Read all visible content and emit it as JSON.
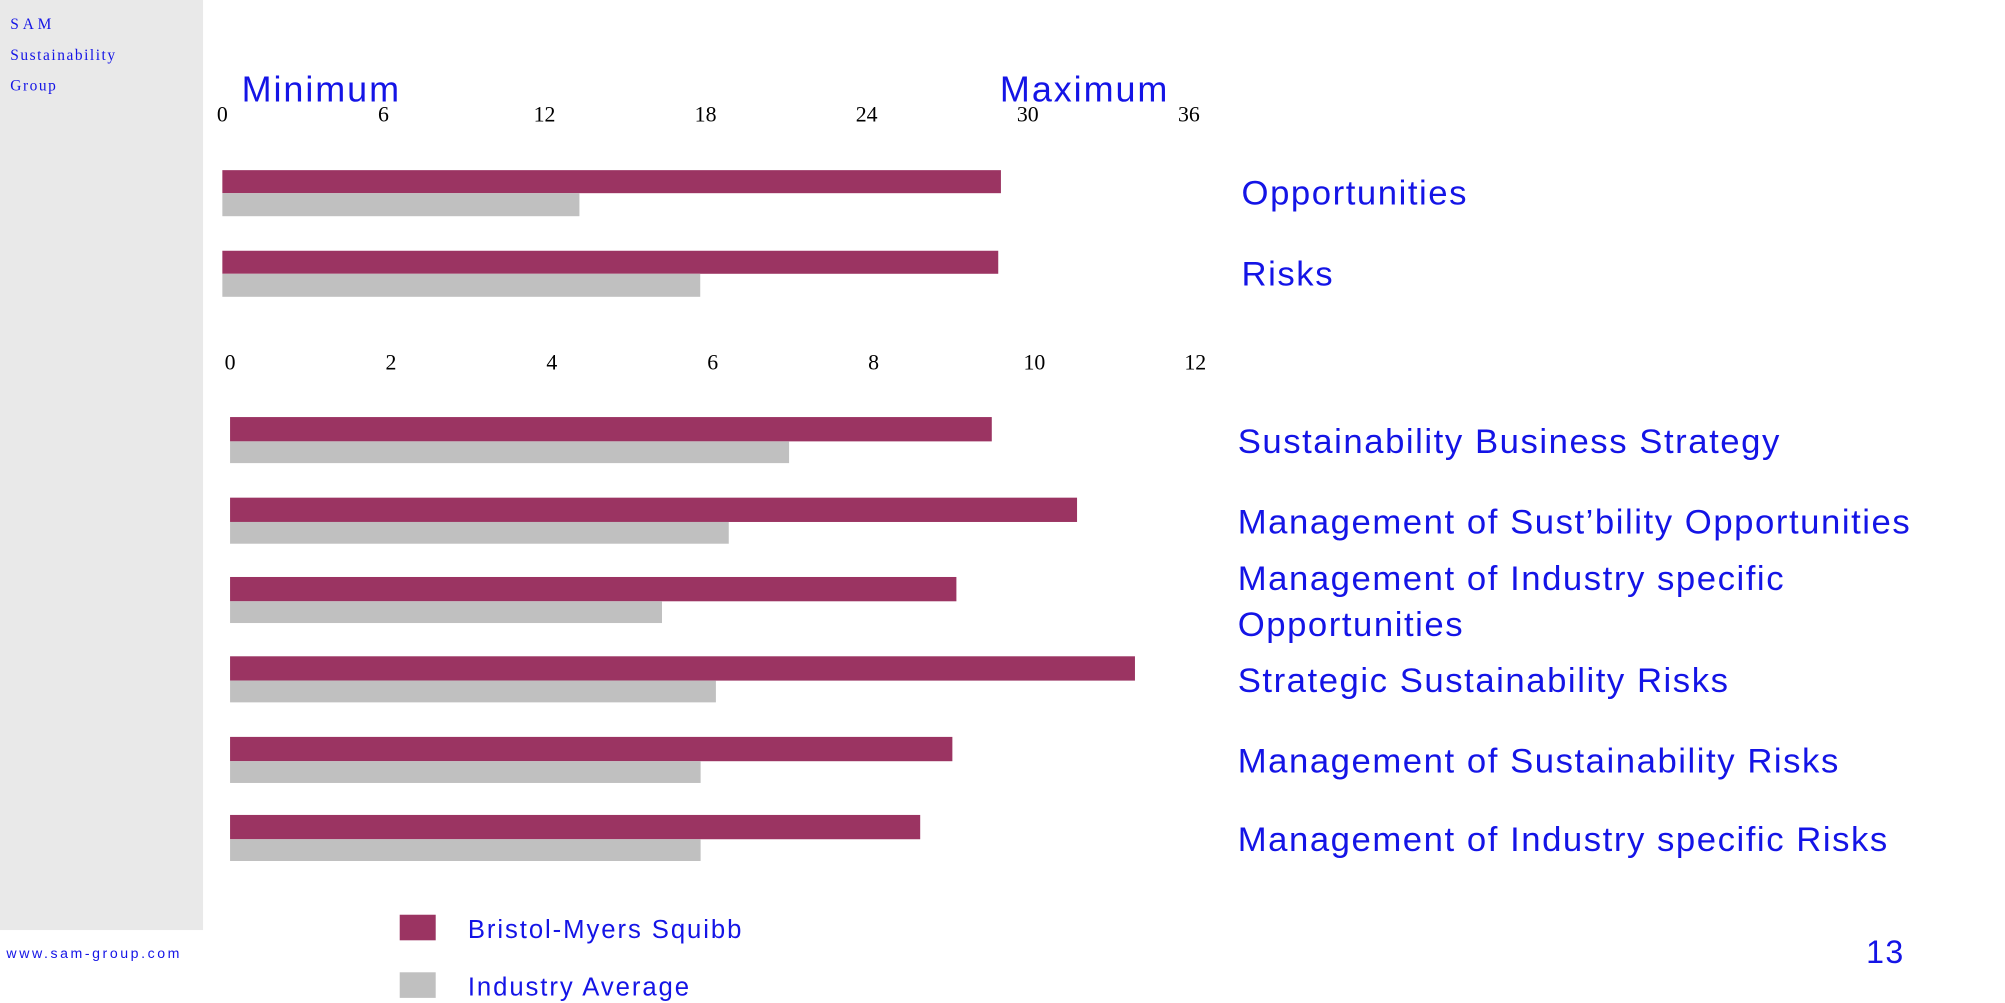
{
  "sidebar": {
    "lines": [
      "SAM",
      "Sustainability",
      "Group"
    ],
    "url": "www.sam-group.com"
  },
  "page_number": "13",
  "legend": [
    {
      "name": "Bristol-Myers Squibb",
      "color": "#9b3462"
    },
    {
      "name": "Industry Average",
      "color": "#c0c0c0"
    }
  ],
  "chart_data": [
    {
      "type": "hbar",
      "annotations": [
        "Minimum",
        "Maximum"
      ],
      "categories": [
        "Opportunities",
        "Risks"
      ],
      "series": [
        {
          "color": "#9b3462",
          "values": [
            29,
            28.9
          ]
        },
        {
          "color": "#c0c0c0",
          "values": [
            13.3,
            17.8
          ]
        }
      ],
      "xlim": [
        0,
        36
      ],
      "xticks": [
        0,
        6,
        12,
        18,
        24,
        30,
        36
      ]
    },
    {
      "type": "hbar",
      "categories": [
        "Sustainability Business Strategy",
        "Management of Sust’bility Opportunities",
        "Management of Industry specific Opportunities",
        "Strategic Sustainability Risks",
        "Management of Sustainability Risks",
        "Management of Industry specific Risks"
      ],
      "series": [
        {
          "color": "#9b3462",
          "values": [
            9.47,
            10.53,
            9.03,
            11.25,
            8.98,
            8.58
          ]
        },
        {
          "color": "#c0c0c0",
          "values": [
            6.95,
            6.2,
            5.37,
            6.04,
            5.85,
            5.85
          ]
        }
      ],
      "xlim": [
        0,
        12
      ],
      "xticks": [
        0,
        2,
        4,
        6,
        8,
        10,
        12
      ]
    }
  ]
}
